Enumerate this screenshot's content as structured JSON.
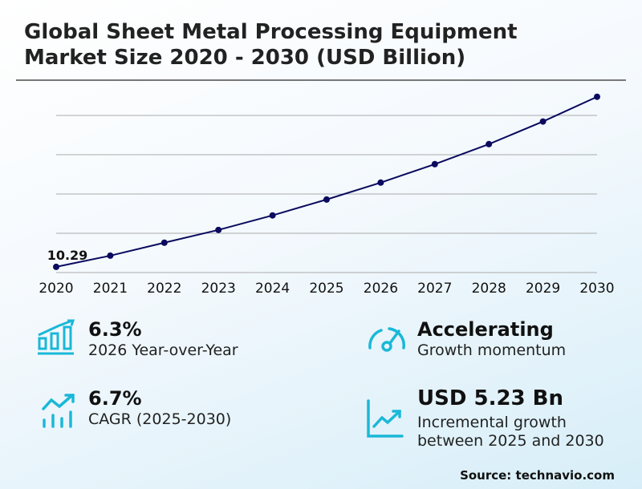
{
  "title_line1": "Global Sheet Metal Processing Equipment",
  "title_line2": "Market Size 2020 - 2030 (USD Billion)",
  "colors": {
    "line": "#0a0a5e",
    "icon": "#1ab8d8",
    "grid": "#aaaaaa"
  },
  "chart_data": {
    "type": "line",
    "title": "Global Sheet Metal Processing Equipment Market Size 2020 - 2030 (USD Billion)",
    "x": [
      "2020",
      "2021",
      "2022",
      "2023",
      "2024",
      "2025",
      "2026",
      "2027",
      "2028",
      "2029",
      "2030"
    ],
    "series": [
      {
        "values": [
          10.29,
          10.86,
          11.52,
          12.17,
          12.91,
          13.72,
          14.58,
          15.52,
          16.54,
          17.69,
          18.95
        ]
      }
    ],
    "data_labels": [
      {
        "index": 0,
        "text": "10.29"
      }
    ],
    "ylim": [
      10,
      19.5
    ],
    "grid": true,
    "gridlines": [
      10,
      12,
      14,
      16,
      18
    ],
    "y_tick_labels_shown": false
  },
  "stats": [
    {
      "value": "6.3%",
      "label": "2026 Year-over-Year",
      "icon": "bar-growth-icon"
    },
    {
      "value": "Accelerating",
      "label": "Growth momentum",
      "icon": "speedometer-icon"
    },
    {
      "value": "6.7%",
      "label": "CAGR (2025-2030)",
      "icon": "trend-arrow-bars-icon"
    },
    {
      "value": "USD 5.23 Bn",
      "label_line1": "Incremental growth",
      "label_line2": "between 2025 and 2030",
      "icon": "line-chart-icon"
    }
  ],
  "source": "Source: technavio.com"
}
